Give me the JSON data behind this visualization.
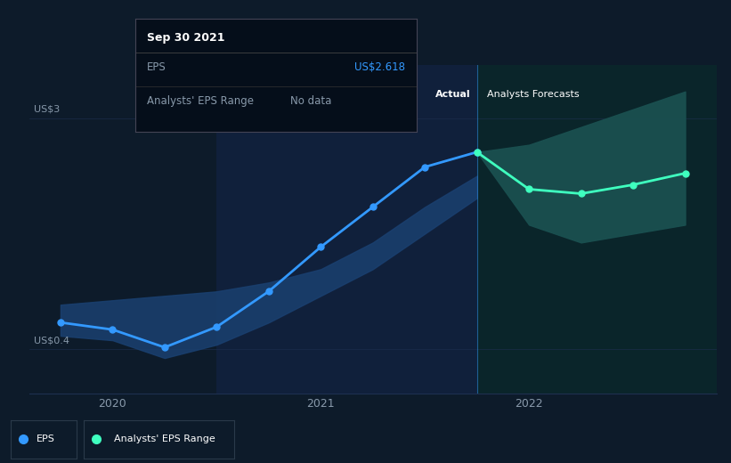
{
  "bg_color": "#0d1b2a",
  "plot_bg_color": "#0d1b2a",
  "highlight_bg_color": "#112240",
  "forecast_bg_color": "#0a2a2a",
  "grid_color": "#1e3050",
  "text_color": "#ffffff",
  "subtext_color": "#8899aa",
  "eps_line_color": "#3399ff",
  "forecast_line_color": "#3fffbf",
  "forecast_band_color": "#1a5050",
  "axis_label_color": "#8899aa",
  "tooltip_bg": "#050e1a",
  "tooltip_border": "#444455",
  "tooltip_title_color": "#ffffff",
  "tooltip_eps_color": "#3399ff",
  "ylabel_us3": "US$3",
  "ylabel_us04": "US$0.4",
  "xlabel_2020": "2020",
  "xlabel_2021": "2021",
  "xlabel_2022": "2022",
  "label_actual": "Actual",
  "label_forecasts": "Analysts Forecasts",
  "legend_eps": "EPS",
  "legend_range": "Analysts' EPS Range",
  "tooltip_date": "Sep 30 2021",
  "tooltip_eps_label": "EPS",
  "tooltip_eps_value": "US$2.618",
  "tooltip_range_label": "Analysts' EPS Range",
  "tooltip_range_value": "No data",
  "eps_x": [
    2019.75,
    2020.0,
    2020.25,
    2020.5,
    2020.75,
    2021.0,
    2021.25,
    2021.5,
    2021.75
  ],
  "eps_y": [
    0.7,
    0.62,
    0.42,
    0.65,
    1.05,
    1.55,
    2.0,
    2.45,
    2.618
  ],
  "forecast_x": [
    2021.75,
    2022.0,
    2022.25,
    2022.5,
    2022.75
  ],
  "forecast_y": [
    2.618,
    2.2,
    2.15,
    2.25,
    2.38
  ],
  "forecast_upper": [
    2.618,
    2.7,
    2.9,
    3.1,
    3.3
  ],
  "forecast_lower": [
    2.618,
    1.8,
    1.6,
    1.7,
    1.8
  ],
  "hist_band_upper_y": [
    0.9,
    0.95,
    1.0,
    1.05,
    1.15,
    1.3,
    1.6,
    2.0,
    2.35
  ],
  "hist_band_lower_y": [
    0.55,
    0.5,
    0.3,
    0.45,
    0.7,
    1.0,
    1.3,
    1.7,
    2.1
  ],
  "vertical_line_x": 2021.75,
  "highlight_start_x": 2020.5,
  "ylim_min": -0.1,
  "ylim_max": 3.6,
  "xlim_min": 2019.6,
  "xlim_max": 2022.9
}
